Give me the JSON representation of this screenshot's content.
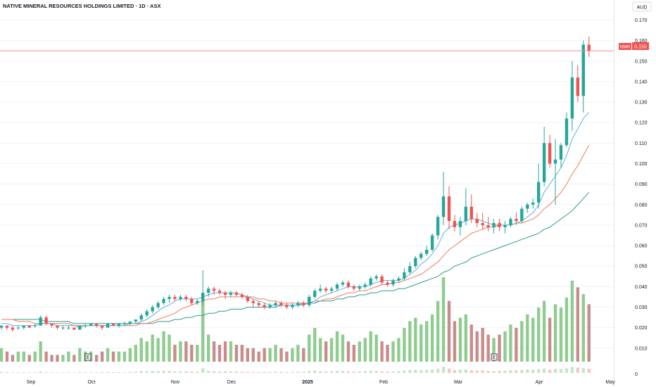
{
  "header": {
    "title": "NATIVE MINERAL RESOURCES HOLDINGS LIMITED · 1D · ASX",
    "currency": "AUD"
  },
  "price_tag": {
    "symbol": "NMR",
    "value": "0.155"
  },
  "colors": {
    "up": "#26a69a",
    "down": "#ef5350",
    "vol_up": "#8fcc90",
    "vol_down": "#c98c8c",
    "ma_fast": "#5fb0e0",
    "ma_mid": "#f07b5a",
    "ma_slow": "#2a9d8f",
    "price_line": "#f28b9b",
    "price_tag_bg": "#ef5350"
  },
  "chart_data": {
    "type": "candlestick",
    "title": "NATIVE MINERAL RESOURCES HOLDINGS LIMITED · 1D · ASX",
    "ylabel": "AUD",
    "ylim": [
      0.004,
      0.174
    ],
    "y_ticks": [
      "0.170",
      "0.160",
      "0.150",
      "0.140",
      "0.130",
      "0.120",
      "0.110",
      "0.100",
      "0.090",
      "0.080",
      "0.070",
      "0.060",
      "0.050",
      "0.040",
      "0.030",
      "0.020",
      "0.010"
    ],
    "x_ticks": [
      "Sep",
      "Oct",
      "Nov",
      "Dec",
      "2025",
      "Feb",
      "Mar",
      "Apr",
      "May"
    ],
    "last_price": 0.155,
    "volume_axis_label": "0",
    "earnings_markers": [
      "E",
      "E"
    ],
    "candles": [
      [
        0.02,
        0.021,
        0.019,
        0.021
      ],
      [
        0.021,
        0.021,
        0.019,
        0.02
      ],
      [
        0.02,
        0.021,
        0.018,
        0.019
      ],
      [
        0.02,
        0.021,
        0.019,
        0.02
      ],
      [
        0.02,
        0.021,
        0.019,
        0.021
      ],
      [
        0.021,
        0.021,
        0.02,
        0.02
      ],
      [
        0.021,
        0.022,
        0.02,
        0.021
      ],
      [
        0.021,
        0.026,
        0.021,
        0.025
      ],
      [
        0.025,
        0.026,
        0.021,
        0.022
      ],
      [
        0.022,
        0.022,
        0.02,
        0.021
      ],
      [
        0.021,
        0.021,
        0.019,
        0.02
      ],
      [
        0.02,
        0.021,
        0.019,
        0.02
      ],
      [
        0.02,
        0.021,
        0.019,
        0.02
      ],
      [
        0.02,
        0.02,
        0.019,
        0.019
      ],
      [
        0.019,
        0.021,
        0.019,
        0.021
      ],
      [
        0.021,
        0.022,
        0.02,
        0.021
      ],
      [
        0.021,
        0.022,
        0.021,
        0.022
      ],
      [
        0.022,
        0.022,
        0.02,
        0.021
      ],
      [
        0.021,
        0.021,
        0.019,
        0.02
      ],
      [
        0.02,
        0.022,
        0.02,
        0.022
      ],
      [
        0.022,
        0.022,
        0.021,
        0.021
      ],
      [
        0.021,
        0.022,
        0.02,
        0.022
      ],
      [
        0.022,
        0.023,
        0.021,
        0.022
      ],
      [
        0.022,
        0.023,
        0.021,
        0.023
      ],
      [
        0.023,
        0.024,
        0.022,
        0.024
      ],
      [
        0.024,
        0.027,
        0.023,
        0.026
      ],
      [
        0.026,
        0.029,
        0.025,
        0.028
      ],
      [
        0.028,
        0.031,
        0.027,
        0.03
      ],
      [
        0.03,
        0.033,
        0.029,
        0.032
      ],
      [
        0.032,
        0.035,
        0.031,
        0.034
      ],
      [
        0.034,
        0.036,
        0.032,
        0.035
      ],
      [
        0.035,
        0.036,
        0.033,
        0.034
      ],
      [
        0.034,
        0.036,
        0.033,
        0.035
      ],
      [
        0.035,
        0.036,
        0.033,
        0.034
      ],
      [
        0.034,
        0.035,
        0.031,
        0.032
      ],
      [
        0.032,
        0.034,
        0.031,
        0.033
      ],
      [
        0.033,
        0.048,
        0.031,
        0.037
      ],
      [
        0.037,
        0.04,
        0.035,
        0.039
      ],
      [
        0.039,
        0.04,
        0.036,
        0.038
      ],
      [
        0.038,
        0.039,
        0.036,
        0.037
      ],
      [
        0.037,
        0.038,
        0.034,
        0.036
      ],
      [
        0.036,
        0.038,
        0.035,
        0.037
      ],
      [
        0.037,
        0.038,
        0.035,
        0.036
      ],
      [
        0.036,
        0.037,
        0.034,
        0.035
      ],
      [
        0.035,
        0.036,
        0.032,
        0.033
      ],
      [
        0.033,
        0.034,
        0.03,
        0.032
      ],
      [
        0.032,
        0.033,
        0.03,
        0.031
      ],
      [
        0.031,
        0.032,
        0.029,
        0.03
      ],
      [
        0.03,
        0.032,
        0.029,
        0.031
      ],
      [
        0.031,
        0.033,
        0.03,
        0.032
      ],
      [
        0.032,
        0.033,
        0.03,
        0.031
      ],
      [
        0.031,
        0.032,
        0.029,
        0.03
      ],
      [
        0.03,
        0.032,
        0.029,
        0.031
      ],
      [
        0.031,
        0.033,
        0.03,
        0.032
      ],
      [
        0.032,
        0.033,
        0.03,
        0.031
      ],
      [
        0.031,
        0.036,
        0.03,
        0.035
      ],
      [
        0.035,
        0.039,
        0.034,
        0.038
      ],
      [
        0.038,
        0.041,
        0.037,
        0.039
      ],
      [
        0.039,
        0.04,
        0.037,
        0.038
      ],
      [
        0.038,
        0.04,
        0.037,
        0.039
      ],
      [
        0.039,
        0.042,
        0.038,
        0.041
      ],
      [
        0.041,
        0.043,
        0.04,
        0.042
      ],
      [
        0.042,
        0.043,
        0.039,
        0.04
      ],
      [
        0.04,
        0.041,
        0.038,
        0.039
      ],
      [
        0.039,
        0.041,
        0.038,
        0.04
      ],
      [
        0.04,
        0.042,
        0.039,
        0.041
      ],
      [
        0.041,
        0.045,
        0.04,
        0.044
      ],
      [
        0.044,
        0.046,
        0.043,
        0.045
      ],
      [
        0.045,
        0.046,
        0.041,
        0.042
      ],
      [
        0.042,
        0.043,
        0.04,
        0.041
      ],
      [
        0.041,
        0.044,
        0.04,
        0.043
      ],
      [
        0.043,
        0.045,
        0.042,
        0.044
      ],
      [
        0.044,
        0.049,
        0.043,
        0.047
      ],
      [
        0.047,
        0.052,
        0.046,
        0.05
      ],
      [
        0.05,
        0.055,
        0.049,
        0.054
      ],
      [
        0.054,
        0.057,
        0.053,
        0.056
      ],
      [
        0.056,
        0.06,
        0.055,
        0.058
      ],
      [
        0.058,
        0.066,
        0.057,
        0.065
      ],
      [
        0.065,
        0.075,
        0.063,
        0.074
      ],
      [
        0.074,
        0.096,
        0.07,
        0.084
      ],
      [
        0.084,
        0.089,
        0.068,
        0.072
      ],
      [
        0.072,
        0.075,
        0.067,
        0.069
      ],
      [
        0.069,
        0.074,
        0.065,
        0.072
      ],
      [
        0.072,
        0.088,
        0.07,
        0.079
      ],
      [
        0.079,
        0.085,
        0.071,
        0.073
      ],
      [
        0.073,
        0.076,
        0.069,
        0.071
      ],
      [
        0.071,
        0.076,
        0.068,
        0.07
      ],
      [
        0.07,
        0.074,
        0.067,
        0.069
      ],
      [
        0.069,
        0.073,
        0.066,
        0.071
      ],
      [
        0.071,
        0.073,
        0.067,
        0.069
      ],
      [
        0.069,
        0.072,
        0.066,
        0.07
      ],
      [
        0.07,
        0.074,
        0.069,
        0.073
      ],
      [
        0.073,
        0.076,
        0.07,
        0.072
      ],
      [
        0.072,
        0.079,
        0.071,
        0.078
      ],
      [
        0.078,
        0.081,
        0.076,
        0.08
      ],
      [
        0.08,
        0.083,
        0.078,
        0.081
      ],
      [
        0.081,
        0.1,
        0.078,
        0.091
      ],
      [
        0.091,
        0.118,
        0.089,
        0.11
      ],
      [
        0.11,
        0.114,
        0.098,
        0.1
      ],
      [
        0.1,
        0.112,
        0.08,
        0.102
      ],
      [
        0.102,
        0.11,
        0.098,
        0.109
      ],
      [
        0.109,
        0.125,
        0.108,
        0.122
      ],
      [
        0.122,
        0.15,
        0.116,
        0.142
      ],
      [
        0.142,
        0.148,
        0.13,
        0.133
      ],
      [
        0.133,
        0.16,
        0.125,
        0.158
      ],
      [
        0.158,
        0.162,
        0.152,
        0.155
      ]
    ],
    "volumes": [
      4,
      3,
      2,
      3,
      3,
      2,
      3,
      6,
      3,
      2,
      2,
      2,
      3,
      2,
      4,
      3,
      3,
      2,
      3,
      4,
      3,
      3,
      3,
      4,
      5,
      7,
      6,
      8,
      7,
      9,
      8,
      5,
      6,
      6,
      5,
      5,
      19,
      8,
      6,
      5,
      6,
      6,
      5,
      5,
      4,
      4,
      3,
      4,
      4,
      5,
      4,
      3,
      4,
      5,
      4,
      8,
      10,
      7,
      6,
      7,
      9,
      8,
      6,
      5,
      6,
      7,
      9,
      8,
      6,
      5,
      6,
      7,
      10,
      12,
      13,
      11,
      12,
      14,
      18,
      25,
      18,
      12,
      13,
      14,
      11,
      9,
      10,
      8,
      7,
      8,
      9,
      11,
      10,
      12,
      14,
      13,
      16,
      18,
      13,
      17,
      16,
      19,
      24,
      22,
      20,
      17
    ]
  },
  "ma_data": {
    "ma_fast": [
      0.022,
      0.022,
      0.021,
      0.021,
      0.021,
      0.021,
      0.021,
      0.022,
      0.022,
      0.022,
      0.021,
      0.021,
      0.021,
      0.021,
      0.02,
      0.021,
      0.021,
      0.021,
      0.021,
      0.021,
      0.021,
      0.021,
      0.021,
      0.022,
      0.022,
      0.023,
      0.024,
      0.026,
      0.028,
      0.03,
      0.031,
      0.033,
      0.034,
      0.034,
      0.034,
      0.034,
      0.035,
      0.036,
      0.037,
      0.037,
      0.037,
      0.037,
      0.037,
      0.036,
      0.035,
      0.034,
      0.033,
      0.032,
      0.031,
      0.031,
      0.031,
      0.031,
      0.031,
      0.031,
      0.031,
      0.032,
      0.033,
      0.035,
      0.036,
      0.037,
      0.038,
      0.039,
      0.04,
      0.04,
      0.04,
      0.04,
      0.041,
      0.042,
      0.043,
      0.043,
      0.043,
      0.043,
      0.044,
      0.046,
      0.048,
      0.051,
      0.053,
      0.056,
      0.06,
      0.066,
      0.069,
      0.07,
      0.071,
      0.072,
      0.073,
      0.073,
      0.072,
      0.071,
      0.07,
      0.07,
      0.07,
      0.07,
      0.071,
      0.072,
      0.074,
      0.076,
      0.08,
      0.086,
      0.09,
      0.094,
      0.098,
      0.104,
      0.112,
      0.117,
      0.122,
      0.125
    ],
    "ma_mid": [
      0.024,
      0.024,
      0.024,
      0.023,
      0.023,
      0.023,
      0.022,
      0.022,
      0.022,
      0.022,
      0.022,
      0.022,
      0.022,
      0.021,
      0.021,
      0.021,
      0.021,
      0.021,
      0.021,
      0.021,
      0.021,
      0.021,
      0.021,
      0.021,
      0.021,
      0.022,
      0.022,
      0.023,
      0.024,
      0.025,
      0.026,
      0.027,
      0.029,
      0.03,
      0.031,
      0.032,
      0.033,
      0.034,
      0.034,
      0.035,
      0.035,
      0.035,
      0.035,
      0.035,
      0.035,
      0.035,
      0.034,
      0.034,
      0.033,
      0.033,
      0.032,
      0.032,
      0.032,
      0.032,
      0.032,
      0.032,
      0.033,
      0.033,
      0.034,
      0.034,
      0.035,
      0.036,
      0.037,
      0.037,
      0.038,
      0.038,
      0.039,
      0.04,
      0.041,
      0.041,
      0.042,
      0.042,
      0.043,
      0.044,
      0.045,
      0.046,
      0.048,
      0.05,
      0.052,
      0.055,
      0.058,
      0.06,
      0.062,
      0.064,
      0.066,
      0.067,
      0.068,
      0.069,
      0.069,
      0.07,
      0.07,
      0.07,
      0.071,
      0.071,
      0.072,
      0.073,
      0.075,
      0.078,
      0.08,
      0.083,
      0.086,
      0.09,
      0.095,
      0.099,
      0.104,
      0.109
    ],
    "ma_slow": [
      0.024,
      0.024,
      0.024,
      0.024,
      0.024,
      0.024,
      0.024,
      0.024,
      0.023,
      0.023,
      0.023,
      0.023,
      0.023,
      0.022,
      0.022,
      0.022,
      0.022,
      0.022,
      0.022,
      0.022,
      0.022,
      0.022,
      0.022,
      0.022,
      0.022,
      0.022,
      0.022,
      0.022,
      0.023,
      0.023,
      0.023,
      0.024,
      0.024,
      0.025,
      0.025,
      0.026,
      0.026,
      0.027,
      0.027,
      0.028,
      0.028,
      0.029,
      0.029,
      0.029,
      0.03,
      0.03,
      0.03,
      0.03,
      0.03,
      0.03,
      0.031,
      0.031,
      0.031,
      0.031,
      0.032,
      0.032,
      0.032,
      0.033,
      0.033,
      0.033,
      0.034,
      0.034,
      0.035,
      0.035,
      0.036,
      0.036,
      0.037,
      0.037,
      0.038,
      0.038,
      0.038,
      0.039,
      0.039,
      0.04,
      0.041,
      0.042,
      0.043,
      0.044,
      0.045,
      0.047,
      0.048,
      0.05,
      0.051,
      0.052,
      0.054,
      0.055,
      0.056,
      0.057,
      0.058,
      0.059,
      0.06,
      0.061,
      0.062,
      0.063,
      0.064,
      0.065,
      0.066,
      0.068,
      0.069,
      0.071,
      0.073,
      0.075,
      0.077,
      0.08,
      0.083,
      0.086
    ]
  }
}
